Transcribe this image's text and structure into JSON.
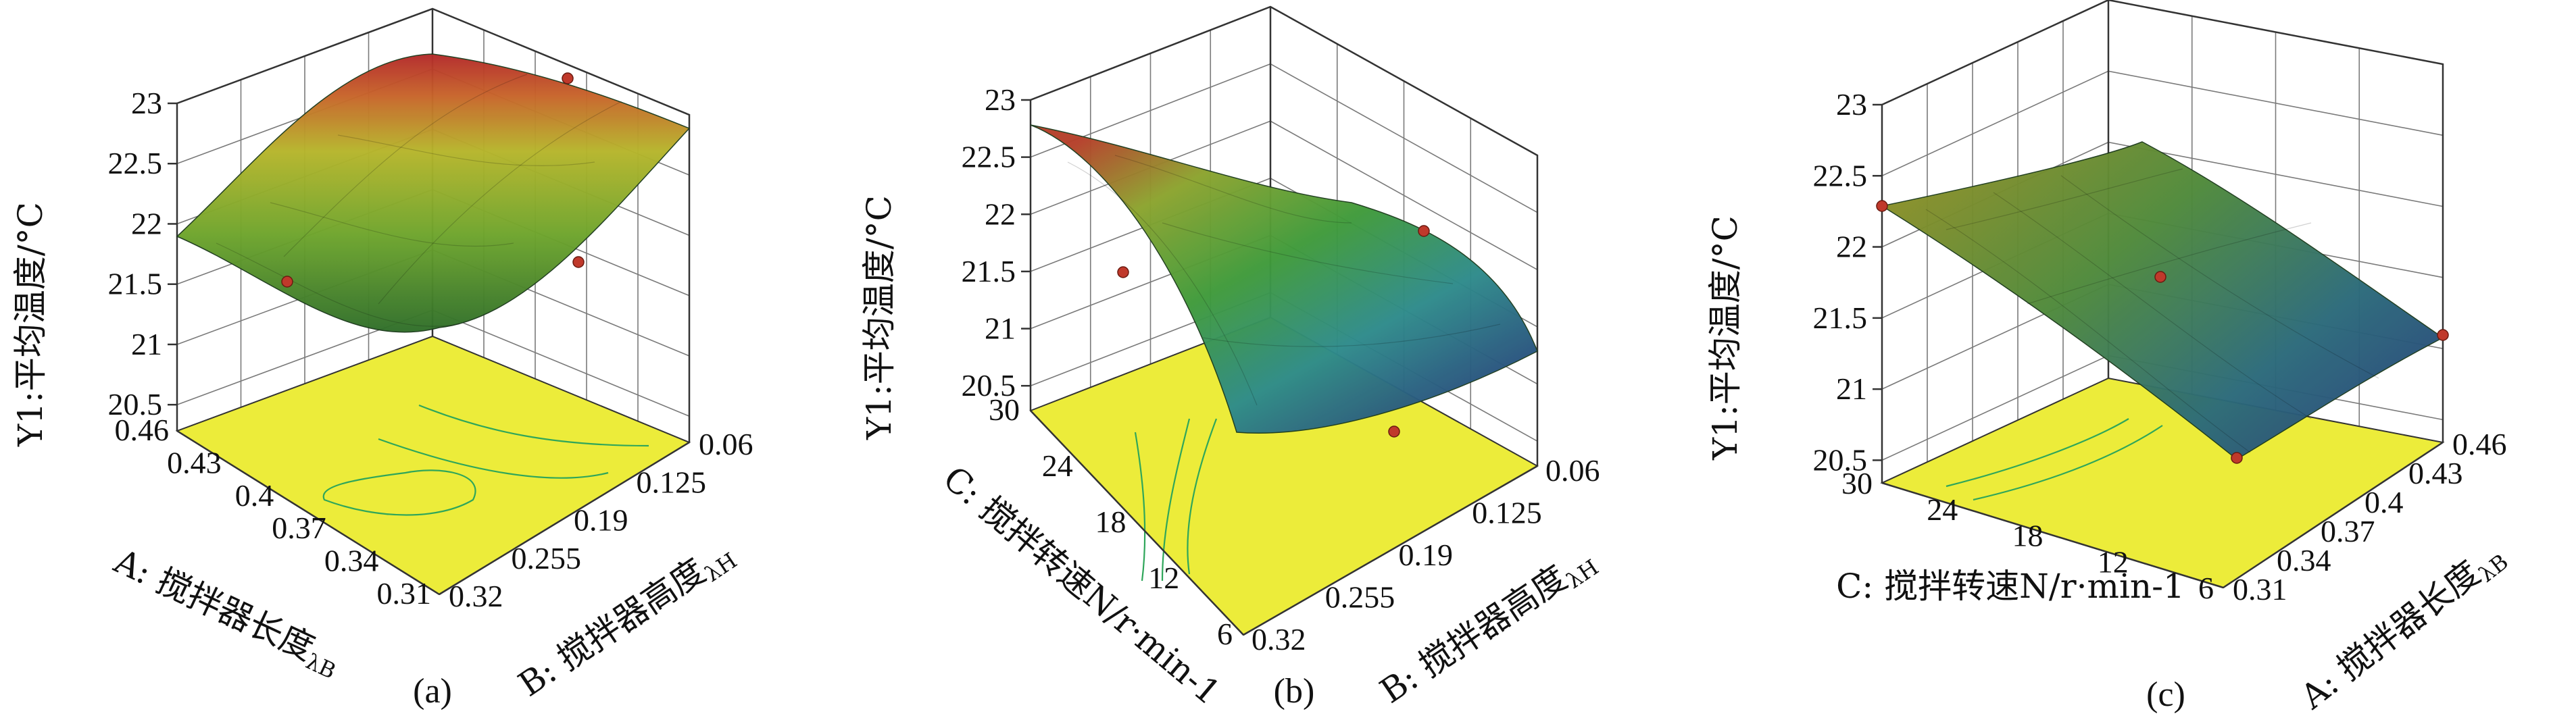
{
  "colors": {
    "floor": "#ecec3a",
    "contour": "#2fa65a",
    "grid": "#7a7a7a",
    "box": "#333333",
    "point": "#c0392b"
  },
  "chart_data": [
    {
      "type": "surface3d",
      "caption": "(a)",
      "zlabel": "Y1:平均温度/°C",
      "xlabel": "A: 搅拌器长度λB",
      "ylabel": "B: 搅拌器高度λH",
      "x_ticks": [
        "0.46",
        "0.43",
        "0.4",
        "0.37",
        "0.34",
        "0.31"
      ],
      "y_ticks": [
        "0.06",
        "0.125",
        "0.19",
        "0.255",
        "0.32"
      ],
      "z_ticks": [
        "23",
        "22.5",
        "22",
        "21.5",
        "21",
        "20.5"
      ],
      "xlim": [
        0.31,
        0.46
      ],
      "ylim": [
        0.06,
        0.32
      ],
      "zlim": [
        20.5,
        23
      ],
      "colormap": "green-to-red",
      "surface_corners": {
        "A0.46_B0.32": 21.7,
        "A0.31_B0.32": 20.7,
        "A0.46_B0.06": 22.9,
        "A0.31_B0.06": 22.6
      },
      "design_points": [
        {
          "A": 0.46,
          "B": 0.06,
          "Y1": 23.0
        },
        {
          "A": 0.4,
          "B": 0.32,
          "Y1": 21.4
        },
        {
          "A": 0.31,
          "B": 0.06,
          "Y1": 21.7
        }
      ]
    },
    {
      "type": "surface3d",
      "caption": "(b)",
      "zlabel": "Y1:平均温度/°C",
      "xlabel": "C: 搅拌转速N/r·min-1",
      "ylabel": "B: 搅拌器高度λH",
      "x_ticks": [
        "30",
        "24",
        "18",
        "12",
        "6"
      ],
      "y_ticks": [
        "0.32",
        "0.255",
        "0.19",
        "0.125",
        "0.06"
      ],
      "z_ticks": [
        "23",
        "22.5",
        "22",
        "21.5",
        "21",
        "20.5"
      ],
      "xlim": [
        6,
        30
      ],
      "ylim": [
        0.06,
        0.32
      ],
      "zlim": [
        20.5,
        23
      ],
      "colormap": "blue-to-red",
      "surface_corners": {
        "C30_B0.06": 22.6,
        "C30_B0.32": 21.7,
        "C6_B0.06": 20.2,
        "C6_B0.32": 20.9
      },
      "design_points": [
        {
          "C": 30,
          "B": 0.19,
          "Y1": 21.4
        },
        {
          "C": 6,
          "B": 0.32,
          "Y1": 21.5
        },
        {
          "C": 6,
          "B": 0.06,
          "Y1": 20.2
        }
      ]
    },
    {
      "type": "surface3d",
      "caption": "(c)",
      "zlabel": "Y1:平均温度/°C",
      "xlabel": "C: 搅拌转速N/r·min-1",
      "ylabel": "A: 搅拌器长度λB",
      "x_ticks": [
        "30",
        "24",
        "18",
        "12",
        "6"
      ],
      "y_ticks": [
        "0.46",
        "0.43",
        "0.4",
        "0.37",
        "0.34",
        "0.31"
      ],
      "z_ticks": [
        "23",
        "22.5",
        "22",
        "21.5",
        "21",
        "20.5"
      ],
      "xlim": [
        6,
        30
      ],
      "ylim": [
        0.31,
        0.46
      ],
      "zlim": [
        20.5,
        23
      ],
      "colormap": "blue-to-yellow",
      "surface_corners": {
        "C30_A0.31": 22.0,
        "C30_A0.46": 22.3,
        "C6_A0.46": 21.0,
        "C6_A0.31": 20.1
      },
      "design_points": [
        {
          "C": 30,
          "A": 0.31,
          "Y1": 22.0
        },
        {
          "C": 18,
          "A": 0.385,
          "Y1": 21.4
        },
        {
          "C": 6,
          "A": 0.46,
          "Y1": 21.0
        },
        {
          "C": 6,
          "A": 0.31,
          "Y1": 20.2
        }
      ]
    }
  ]
}
